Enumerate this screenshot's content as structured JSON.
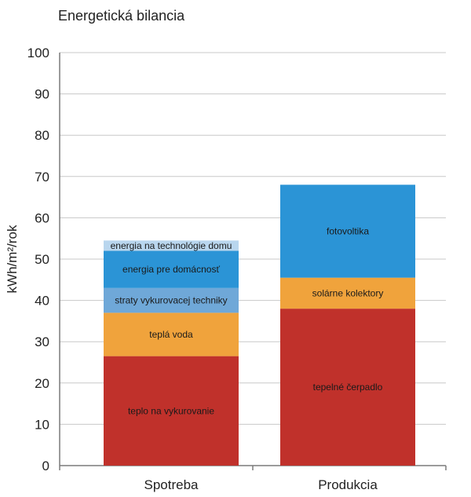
{
  "chart_data": {
    "type": "bar",
    "stacked": true,
    "title": "Energetická bilancia",
    "xlabel": "",
    "ylabel": "kWh/m²/rok",
    "ylim": [
      0,
      100
    ],
    "yticks": [
      0,
      10,
      20,
      30,
      40,
      50,
      60,
      70,
      80,
      90,
      100
    ],
    "grid": true,
    "categories": [
      "Spotreba",
      "Produkcia"
    ],
    "stacks": [
      {
        "category": "Spotreba",
        "segments": [
          {
            "label": "teplo na vykurovanie",
            "value": 26.5,
            "color": "#c0312b"
          },
          {
            "label": "teplá voda",
            "value": 10.5,
            "color": "#f0a33c"
          },
          {
            "label": "straty vykurovacej techniky",
            "value": 6,
            "color": "#6fa8d8"
          },
          {
            "label": "energia pre domácnosť",
            "value": 9,
            "color": "#2b94d6"
          },
          {
            "label": "energia na technológie domu",
            "value": 2.5,
            "color": "#b9d6ee"
          }
        ]
      },
      {
        "category": "Produkcia",
        "segments": [
          {
            "label": "tepelné čerpadlo",
            "value": 38,
            "color": "#c0312b"
          },
          {
            "label": "solárne kolektory",
            "value": 7.5,
            "color": "#f0a33c"
          },
          {
            "label": "fotovoltika",
            "value": 22.5,
            "color": "#2b94d6"
          }
        ]
      }
    ]
  }
}
